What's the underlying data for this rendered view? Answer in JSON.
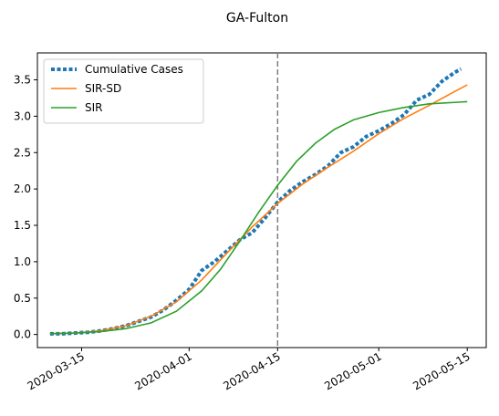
{
  "chart_data": {
    "type": "line",
    "title": "GA-Fulton",
    "xlabel": "",
    "ylabel": "",
    "x_axis": {
      "type": "date",
      "range": [
        "2020-03-08",
        "2020-05-18"
      ],
      "ticks": [
        "2020-03-15",
        "2020-04-01",
        "2020-04-15",
        "2020-05-01",
        "2020-05-15"
      ]
    },
    "y_axis": {
      "range": [
        -0.18,
        3.87
      ],
      "ticks": [
        0.0,
        0.5,
        1.0,
        1.5,
        2.0,
        2.5,
        3.0,
        3.5
      ],
      "tick_labels": [
        "0.0",
        "0.5",
        "1.0",
        "1.5",
        "2.0",
        "2.5",
        "3.0",
        "3.5"
      ]
    },
    "grid": false,
    "legend_position": "top-left",
    "vline": {
      "x": "2020-04-15",
      "style": "dashed",
      "color": "#7f7f7f"
    },
    "series": [
      {
        "name": "Cumulative Cases",
        "style": "dotted",
        "color": "#1f77b4",
        "points": [
          [
            "2020-03-10",
            0.01
          ],
          [
            "2020-03-12",
            0.01
          ],
          [
            "2020-03-14",
            0.02
          ],
          [
            "2020-03-16",
            0.03
          ],
          [
            "2020-03-18",
            0.05
          ],
          [
            "2020-03-20",
            0.08
          ],
          [
            "2020-03-22",
            0.12
          ],
          [
            "2020-03-24",
            0.18
          ],
          [
            "2020-03-26",
            0.24
          ],
          [
            "2020-03-28",
            0.34
          ],
          [
            "2020-03-30",
            0.47
          ],
          [
            "2020-04-01",
            0.62
          ],
          [
            "2020-04-03",
            0.88
          ],
          [
            "2020-04-05",
            1.0
          ],
          [
            "2020-04-07",
            1.15
          ],
          [
            "2020-04-09",
            1.3
          ],
          [
            "2020-04-11",
            1.4
          ],
          [
            "2020-04-13",
            1.6
          ],
          [
            "2020-04-15",
            1.82
          ],
          [
            "2020-04-17",
            1.98
          ],
          [
            "2020-04-19",
            2.1
          ],
          [
            "2020-04-21",
            2.2
          ],
          [
            "2020-04-23",
            2.32
          ],
          [
            "2020-04-25",
            2.5
          ],
          [
            "2020-04-27",
            2.58
          ],
          [
            "2020-04-29",
            2.72
          ],
          [
            "2020-05-01",
            2.8
          ],
          [
            "2020-05-03",
            2.9
          ],
          [
            "2020-05-05",
            3.02
          ],
          [
            "2020-05-07",
            3.22
          ],
          [
            "2020-05-09",
            3.3
          ],
          [
            "2020-05-11",
            3.48
          ],
          [
            "2020-05-13",
            3.6
          ],
          [
            "2020-05-14",
            3.65
          ]
        ]
      },
      {
        "name": "SIR-SD",
        "style": "solid",
        "color": "#ff7f0e",
        "points": [
          [
            "2020-03-10",
            0.01
          ],
          [
            "2020-03-14",
            0.02
          ],
          [
            "2020-03-18",
            0.05
          ],
          [
            "2020-03-22",
            0.12
          ],
          [
            "2020-03-26",
            0.25
          ],
          [
            "2020-03-30",
            0.45
          ],
          [
            "2020-04-03",
            0.75
          ],
          [
            "2020-04-07",
            1.12
          ],
          [
            "2020-04-11",
            1.48
          ],
          [
            "2020-04-15",
            1.8
          ],
          [
            "2020-04-19",
            2.07
          ],
          [
            "2020-04-23",
            2.3
          ],
          [
            "2020-04-27",
            2.52
          ],
          [
            "2020-05-01",
            2.76
          ],
          [
            "2020-05-05",
            2.97
          ],
          [
            "2020-05-09",
            3.15
          ],
          [
            "2020-05-13",
            3.34
          ],
          [
            "2020-05-15",
            3.43
          ]
        ]
      },
      {
        "name": "SIR",
        "style": "solid",
        "color": "#2ca02c",
        "points": [
          [
            "2020-03-10",
            0.01
          ],
          [
            "2020-03-14",
            0.02
          ],
          [
            "2020-03-18",
            0.04
          ],
          [
            "2020-03-22",
            0.08
          ],
          [
            "2020-03-26",
            0.16
          ],
          [
            "2020-03-30",
            0.32
          ],
          [
            "2020-04-03",
            0.6
          ],
          [
            "2020-04-06",
            0.9
          ],
          [
            "2020-04-09",
            1.28
          ],
          [
            "2020-04-12",
            1.68
          ],
          [
            "2020-04-15",
            2.05
          ],
          [
            "2020-04-18",
            2.38
          ],
          [
            "2020-04-21",
            2.63
          ],
          [
            "2020-04-24",
            2.82
          ],
          [
            "2020-04-27",
            2.95
          ],
          [
            "2020-05-01",
            3.05
          ],
          [
            "2020-05-05",
            3.12
          ],
          [
            "2020-05-09",
            3.17
          ],
          [
            "2020-05-15",
            3.2
          ]
        ]
      }
    ]
  }
}
